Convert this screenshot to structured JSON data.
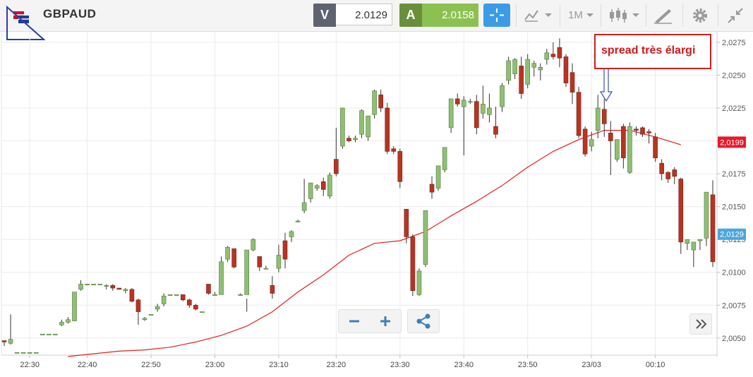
{
  "instrument": {
    "symbol": "GBPAUD"
  },
  "quote": {
    "sell_label": "V",
    "sell_price": "2.0129",
    "buy_label": "A",
    "buy_price": "2.0158"
  },
  "toolbar": {
    "timeframe": "1M",
    "icons": [
      "crosshair-icon",
      "chart-type-icon",
      "timeframe-dropdown",
      "candlestick-icon",
      "drawing-tools-icon",
      "settings-icon",
      "collapse-icon"
    ]
  },
  "chart_data": {
    "type": "candlestick",
    "y_ticks": [
      "2,0275",
      "2,0250",
      "2,0225",
      "2,0200",
      "2,0175",
      "2,0150",
      "2,0125",
      "2,0100",
      "2,0075",
      "2,0050"
    ],
    "y_tick_values": [
      2.0275,
      2.025,
      2.0225,
      2.02,
      2.0175,
      2.015,
      2.0125,
      2.01,
      2.0075,
      2.005
    ],
    "ylim": [
      2.0037,
      2.0283
    ],
    "x_ticks": [
      "22:30",
      "22:40",
      "22:50",
      "23:00",
      "23:10",
      "23:20",
      "23:30",
      "23:40",
      "23:50",
      "23/03",
      "00:10"
    ],
    "x_tick_index": [
      4,
      13,
      23,
      33,
      43,
      52,
      62,
      72,
      82,
      92,
      102
    ],
    "candles": [
      [
        2.0048,
        2.0048,
        2.0047,
        2.0044
      ],
      [
        2.0046,
        2.0068,
        2.0049,
        2.0045
      ],
      [
        2.0039,
        2.0039,
        2.0039,
        2.0039
      ],
      [
        2.0039,
        2.0039,
        2.0039,
        2.0039
      ],
      [
        2.0039,
        2.0039,
        2.0039,
        2.0039
      ],
      [
        2.0039,
        2.0039,
        2.0039,
        2.0039
      ],
      [
        2.0053,
        2.0053,
        2.0053,
        2.0053
      ],
      [
        2.0053,
        2.0053,
        2.0053,
        2.0053
      ],
      [
        2.0053,
        2.0053,
        2.0053,
        2.0053
      ],
      [
        2.006,
        2.0064,
        2.0062,
        2.0059
      ],
      [
        2.0062,
        2.0066,
        2.0064,
        2.0061
      ],
      [
        2.0063,
        2.0085,
        2.0085,
        2.0063
      ],
      [
        2.0087,
        2.0094,
        2.0091,
        2.0086
      ],
      [
        2.0091,
        2.0091,
        2.0091,
        2.0091
      ],
      [
        2.0091,
        2.0091,
        2.0091,
        2.0091
      ],
      [
        2.0091,
        2.0091,
        2.0091,
        2.0091
      ],
      [
        2.009,
        2.0091,
        2.009,
        2.0087
      ],
      [
        2.009,
        2.0091,
        2.0088,
        2.0086
      ],
      [
        2.0088,
        2.0088,
        2.0087,
        2.0087
      ],
      [
        2.0086,
        2.0088,
        2.0087,
        2.0084
      ],
      [
        2.0087,
        2.0088,
        2.0078,
        2.0077
      ],
      [
        2.0079,
        2.008,
        2.007,
        2.006
      ],
      [
        2.0064,
        2.0066,
        2.0065,
        2.0063
      ],
      [
        2.0068,
        2.0068,
        2.0068,
        2.0068
      ],
      [
        2.0072,
        2.0076,
        2.0074,
        2.007
      ],
      [
        2.0076,
        2.0084,
        2.0082,
        2.0074
      ],
      [
        2.0083,
        2.0083,
        2.0083,
        2.0083
      ],
      [
        2.0083,
        2.0083,
        2.0083,
        2.0083
      ],
      [
        2.0083,
        2.0083,
        2.0079,
        2.0078
      ],
      [
        2.0079,
        2.008,
        2.0075,
        2.0073
      ],
      [
        2.0075,
        2.0076,
        2.0072,
        2.0071
      ],
      [
        2.007,
        2.007,
        2.007,
        2.007
      ],
      [
        2.0091,
        2.0091,
        2.0084,
        2.0083
      ],
      [
        2.0083,
        2.0085,
        2.0083,
        2.0083
      ],
      [
        2.0083,
        2.0112,
        2.0108,
        2.0083
      ],
      [
        2.011,
        2.012,
        2.0119,
        2.0108
      ],
      [
        2.0118,
        2.0118,
        2.0104,
        2.0103
      ],
      [
        2.0083,
        2.0084,
        2.0083,
        2.0083
      ],
      [
        2.0083,
        2.008,
        2.0117,
        2.007
      ],
      [
        2.0117,
        2.0126,
        2.0125,
        2.0116
      ],
      [
        2.0112,
        2.0112,
        2.0104,
        2.0101
      ],
      [
        2.0103,
        2.0105,
        2.0103,
        2.0103
      ],
      [
        2.009,
        2.0097,
        2.0084,
        2.008
      ],
      [
        2.0103,
        2.0121,
        2.0113,
        2.01
      ],
      [
        2.0124,
        2.013,
        2.011,
        2.0103
      ],
      [
        2.0127,
        2.0132,
        2.0131,
        2.0123
      ],
      [
        2.0139,
        2.014,
        2.0139,
        2.0138
      ],
      [
        2.0147,
        2.0171,
        2.0153,
        2.0145
      ],
      [
        2.0156,
        2.016,
        2.0168,
        2.0153
      ],
      [
        2.0164,
        2.0167,
        2.0166,
        2.0162
      ],
      [
        2.0169,
        2.0172,
        2.0163,
        2.0158
      ],
      [
        2.0158,
        2.0176,
        2.0174,
        2.0156
      ],
      [
        2.0186,
        2.021,
        2.0175,
        2.0173
      ],
      [
        2.0196,
        2.0224,
        2.0225,
        2.0194
      ],
      [
        2.0202,
        2.0204,
        2.02,
        2.0199
      ],
      [
        2.0201,
        2.0204,
        2.0202,
        2.0199
      ],
      [
        2.0205,
        2.0224,
        2.0223,
        2.0202
      ],
      [
        2.0203,
        2.0219,
        2.0219,
        2.02
      ],
      [
        2.022,
        2.0239,
        2.0238,
        2.0217
      ],
      [
        2.0235,
        2.0239,
        2.0225,
        2.0222
      ],
      [
        2.0225,
        2.0229,
        2.0192,
        2.019
      ],
      [
        2.0194,
        2.0196,
        2.0192,
        2.019
      ],
      [
        2.0192,
        2.0194,
        2.0169,
        2.0164
      ],
      [
        2.0148,
        2.0148,
        2.0127,
        2.0122
      ],
      [
        2.0127,
        2.0129,
        2.0086,
        2.0082
      ],
      [
        2.0083,
        2.0103,
        2.0101,
        2.0082
      ],
      [
        2.0106,
        2.0125,
        2.0147,
        2.0104
      ],
      [
        2.0167,
        2.0173,
        2.0161,
        2.0156
      ],
      [
        2.0164,
        2.0181,
        2.0181,
        2.0162
      ],
      [
        2.0178,
        2.0194,
        2.0195,
        2.0176
      ],
      [
        2.021,
        2.0232,
        2.0232,
        2.0206
      ],
      [
        2.0232,
        2.0236,
        2.0228,
        2.0226
      ],
      [
        2.0226,
        2.0234,
        2.0231,
        2.0189
      ],
      [
        2.023,
        2.0232,
        2.023,
        2.0228
      ],
      [
        2.023,
        2.0235,
        2.021,
        2.0205
      ],
      [
        2.0221,
        2.0242,
        2.0228,
        2.0217
      ],
      [
        2.022,
        2.0236,
        2.0225,
        2.0214
      ],
      [
        2.0211,
        2.0226,
        2.0205,
        2.0202
      ],
      [
        2.0226,
        2.0244,
        2.0242,
        2.0222
      ],
      [
        2.0246,
        2.0264,
        2.0261,
        2.0243
      ],
      [
        2.0251,
        2.0263,
        2.0262,
        2.0247
      ],
      [
        2.0257,
        2.0264,
        2.0236,
        2.0232
      ],
      [
        2.0243,
        2.0266,
        2.0262,
        2.024
      ],
      [
        2.0256,
        2.0261,
        2.0259,
        2.0249
      ],
      [
        2.0254,
        2.0259,
        2.0256,
        2.0246
      ],
      [
        2.0262,
        2.027,
        2.0267,
        2.0258
      ],
      [
        2.0266,
        2.0275,
        2.0264,
        2.0262
      ],
      [
        2.0271,
        2.0278,
        2.0263,
        2.0256
      ],
      [
        2.0264,
        2.0266,
        2.0244,
        2.0241
      ],
      [
        2.0252,
        2.0259,
        2.0237,
        2.0228
      ],
      [
        2.0237,
        2.0241,
        2.0204,
        2.0202
      ],
      [
        2.0209,
        2.0211,
        2.019,
        2.0188
      ],
      [
        2.0196,
        2.0207,
        2.0201,
        2.0192
      ],
      [
        2.0208,
        2.0235,
        2.0225,
        2.0202
      ],
      [
        2.0224,
        2.0232,
        2.0213,
        2.0203
      ],
      [
        2.0206,
        2.0215,
        2.02,
        2.0174
      ],
      [
        2.0186,
        2.0196,
        2.0201,
        2.0184
      ],
      [
        2.0211,
        2.0213,
        2.0187,
        2.0179
      ],
      [
        2.0176,
        2.0214,
        2.0211,
        2.0175
      ],
      [
        2.0209,
        2.0211,
        2.0208,
        2.0204
      ],
      [
        2.021,
        2.0211,
        2.0205,
        2.0203
      ],
      [
        2.0207,
        2.0209,
        2.0206,
        2.0198
      ],
      [
        2.0203,
        2.0206,
        2.0187,
        2.0184
      ],
      [
        2.0183,
        2.0186,
        2.0175,
        2.017
      ],
      [
        2.0176,
        2.0177,
        2.0171,
        2.0168
      ],
      [
        2.0178,
        2.018,
        2.0173,
        2.0167
      ],
      [
        2.0171,
        2.0172,
        2.0123,
        2.0114
      ],
      [
        2.0122,
        2.0125,
        2.0125,
        2.0117
      ],
      [
        2.0117,
        2.0123,
        2.0123,
        2.0104
      ],
      [
        2.0124,
        2.0125,
        2.0125,
        2.0117
      ],
      [
        2.0126,
        2.016,
        2.0161,
        2.012
      ],
      [
        2.0159,
        2.017,
        2.0108,
        2.0104
      ]
    ],
    "moving_average": [
      [
        10,
        2.0036
      ],
      [
        14,
        2.0038
      ],
      [
        18,
        2.004
      ],
      [
        22,
        2.0041
      ],
      [
        26,
        2.0043
      ],
      [
        30,
        2.0047
      ],
      [
        34,
        2.0052
      ],
      [
        38,
        2.0059
      ],
      [
        42,
        2.007
      ],
      [
        46,
        2.0085
      ],
      [
        50,
        2.0098
      ],
      [
        54,
        2.0113
      ],
      [
        58,
        2.0122
      ],
      [
        62,
        2.0124
      ],
      [
        66,
        2.0131
      ],
      [
        70,
        2.0143
      ],
      [
        74,
        2.0154
      ],
      [
        78,
        2.0166
      ],
      [
        82,
        2.018
      ],
      [
        86,
        2.0192
      ],
      [
        90,
        2.0201
      ],
      [
        94,
        2.0208
      ],
      [
        98,
        2.0208
      ],
      [
        102,
        2.0203
      ],
      [
        106,
        2.0197
      ]
    ],
    "sell_marker": {
      "label": "2,0129",
      "value": 2.0129
    },
    "ma_marker": {
      "label": "2,0199",
      "value": 2.0199
    },
    "colors": {
      "up": "#8fbf75",
      "down": "#b83422",
      "ma": "#e02020",
      "ma_tag": "#e8192c",
      "sell_tag": "#4aa6dd"
    }
  },
  "annotation": {
    "text": "spread très élargi"
  }
}
